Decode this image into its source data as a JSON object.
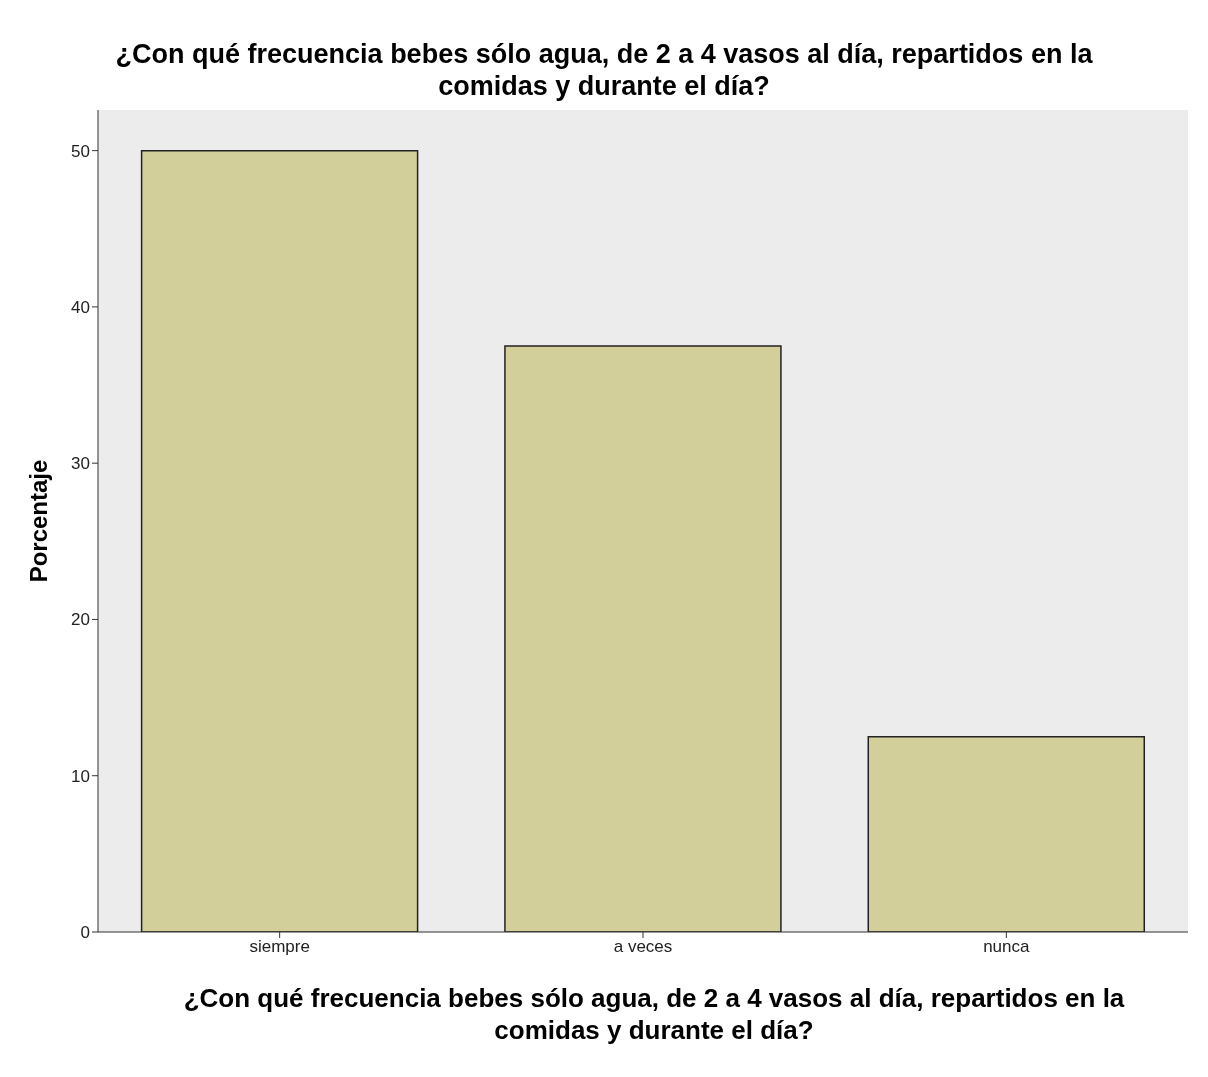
{
  "chart_data": {
    "type": "bar",
    "title": "¿Con qué frecuencia bebes sólo agua, de 2 a 4 vasos al día, repartidos en la comidas y durante el día?",
    "xlabel": "¿Con qué frecuencia bebes sólo agua, de 2 a 4 vasos al día, repartidos en la comidas y durante el día?",
    "ylabel": "Porcentaje",
    "categories": [
      "siempre",
      "a veces",
      "nunca"
    ],
    "values": [
      50,
      37.5,
      12.5
    ],
    "color": "#d3cf9a",
    "ylim": [
      0,
      52.6
    ],
    "yticks": [
      0,
      10,
      20,
      30,
      40,
      50
    ],
    "grid": false
  }
}
